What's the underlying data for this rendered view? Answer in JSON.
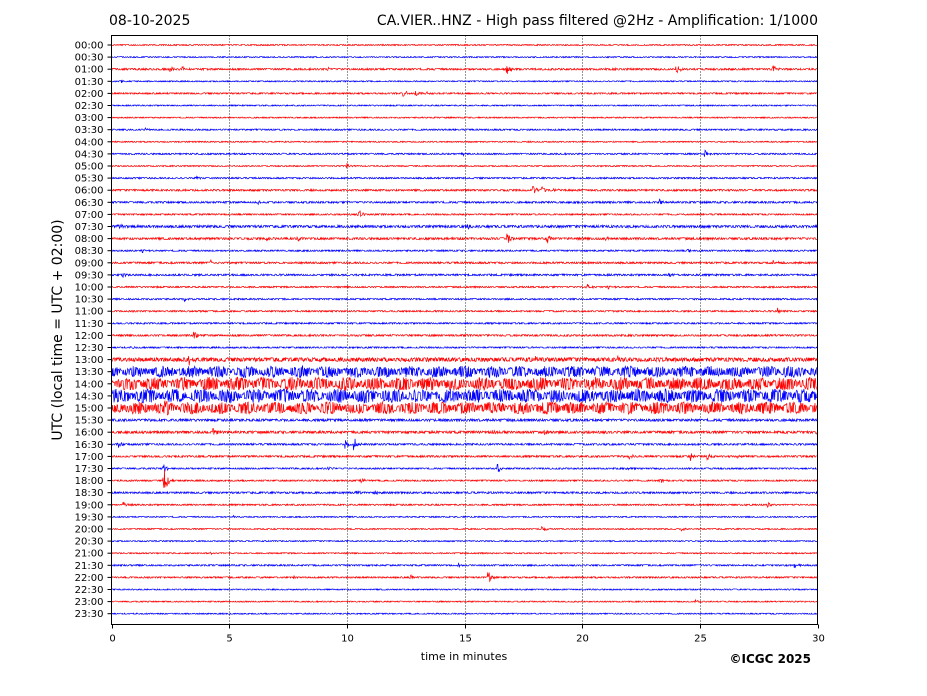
{
  "chart_data": {
    "type": "line",
    "title_left": "08-10-2025",
    "title_right": "CA.VIER..HNZ - High pass filtered @2Hz - Amplification: 1/1000",
    "xlabel": "time in minutes",
    "ylabel": "UTC (local time = UTC + 02:00)",
    "copyright": "©ICGC 2025",
    "xlim": [
      0,
      30
    ],
    "x_ticks": [
      "0",
      "5",
      "10",
      "15",
      "20",
      "25",
      "30"
    ],
    "x_tick_values": [
      0,
      5,
      10,
      15,
      20,
      25,
      30
    ],
    "grid": "vertical dotted",
    "colors": {
      "red": "#ff0000",
      "blue": "#0000ff"
    },
    "rows": [
      {
        "label": "00:00",
        "color": "red",
        "noise": 0.4,
        "events": []
      },
      {
        "label": "00:30",
        "color": "blue",
        "noise": 0.4,
        "events": []
      },
      {
        "label": "01:00",
        "color": "red",
        "noise": 0.6,
        "events": [
          [
            2.5,
            4
          ],
          [
            3,
            3
          ],
          [
            9.2,
            2
          ],
          [
            16.8,
            6
          ],
          [
            24,
            5
          ],
          [
            28.1,
            4
          ]
        ]
      },
      {
        "label": "01:30",
        "color": "blue",
        "noise": 0.4,
        "events": [
          [
            0.4,
            2
          ]
        ]
      },
      {
        "label": "02:00",
        "color": "red",
        "noise": 0.5,
        "events": [
          [
            12.4,
            5
          ],
          [
            12.9,
            4
          ],
          [
            13.4,
            3
          ]
        ]
      },
      {
        "label": "02:30",
        "color": "blue",
        "noise": 0.4,
        "events": []
      },
      {
        "label": "03:00",
        "color": "red",
        "noise": 0.4,
        "events": []
      },
      {
        "label": "03:30",
        "color": "blue",
        "noise": 0.5,
        "events": [
          [
            1.4,
            2
          ]
        ]
      },
      {
        "label": "04:00",
        "color": "red",
        "noise": 0.4,
        "events": []
      },
      {
        "label": "04:30",
        "color": "blue",
        "noise": 0.5,
        "events": [
          [
            14.9,
            2
          ],
          [
            25.2,
            4
          ]
        ]
      },
      {
        "label": "05:00",
        "color": "red",
        "noise": 0.4,
        "events": [
          [
            10,
            3
          ]
        ]
      },
      {
        "label": "05:30",
        "color": "blue",
        "noise": 0.5,
        "events": [
          [
            3.6,
            2
          ]
        ]
      },
      {
        "label": "06:00",
        "color": "red",
        "noise": 0.6,
        "events": [
          [
            17.9,
            5
          ],
          [
            18.3,
            4
          ],
          [
            18.8,
            3
          ]
        ]
      },
      {
        "label": "06:30",
        "color": "blue",
        "noise": 0.6,
        "events": [
          [
            6.2,
            2
          ],
          [
            23.3,
            4
          ]
        ]
      },
      {
        "label": "07:00",
        "color": "red",
        "noise": 0.5,
        "events": [
          [
            10.5,
            6
          ],
          [
            24.1,
            2
          ]
        ]
      },
      {
        "label": "07:30",
        "color": "blue",
        "noise": 0.8,
        "events": [
          [
            0.3,
            4
          ],
          [
            15.1,
            3
          ]
        ]
      },
      {
        "label": "08:00",
        "color": "red",
        "noise": 0.7,
        "events": [
          [
            6.6,
            3
          ],
          [
            7.9,
            3
          ],
          [
            16.8,
            9
          ],
          [
            18.5,
            5
          ],
          [
            21,
            2
          ]
        ]
      },
      {
        "label": "08:30",
        "color": "blue",
        "noise": 0.5,
        "events": [
          [
            1.3,
            2
          ],
          [
            24.5,
            2
          ]
        ]
      },
      {
        "label": "09:00",
        "color": "red",
        "noise": 0.6,
        "events": [
          [
            4.2,
            4
          ],
          [
            28.1,
            3
          ]
        ]
      },
      {
        "label": "09:30",
        "color": "blue",
        "noise": 0.6,
        "events": [
          [
            0.5,
            3
          ],
          [
            23.7,
            3
          ]
        ]
      },
      {
        "label": "10:00",
        "color": "red",
        "noise": 0.5,
        "events": [
          [
            20.2,
            3
          ],
          [
            21.1,
            2
          ]
        ]
      },
      {
        "label": "10:30",
        "color": "blue",
        "noise": 0.5,
        "events": [
          [
            3.1,
            2
          ]
        ]
      },
      {
        "label": "11:00",
        "color": "red",
        "noise": 0.5,
        "events": [
          [
            28.3,
            4
          ]
        ]
      },
      {
        "label": "11:30",
        "color": "blue",
        "noise": 0.5,
        "events": []
      },
      {
        "label": "12:00",
        "color": "red",
        "noise": 0.6,
        "events": [
          [
            3.5,
            5
          ]
        ]
      },
      {
        "label": "12:30",
        "color": "blue",
        "noise": 0.5,
        "events": [
          [
            0.8,
            2
          ]
        ]
      },
      {
        "label": "13:00",
        "color": "red",
        "noise": 1.3,
        "events": [
          [
            3.3,
            5
          ],
          [
            18,
            3
          ],
          [
            21.5,
            3
          ]
        ]
      },
      {
        "label": "13:30",
        "color": "blue",
        "noise": 2.8,
        "events": [
          [
            28.6,
            5
          ]
        ]
      },
      {
        "label": "14:00",
        "color": "red",
        "noise": 3.2,
        "events": [
          [
            20.5,
            6
          ]
        ]
      },
      {
        "label": "14:30",
        "color": "blue",
        "noise": 3.4,
        "events": []
      },
      {
        "label": "15:00",
        "color": "red",
        "noise": 3.0,
        "events": [
          [
            2.3,
            4
          ]
        ]
      },
      {
        "label": "15:30",
        "color": "blue",
        "noise": 0.8,
        "events": []
      },
      {
        "label": "16:00",
        "color": "red",
        "noise": 0.8,
        "events": [
          [
            4.3,
            5
          ],
          [
            16.2,
            3
          ],
          [
            18.4,
            3
          ],
          [
            30,
            3
          ]
        ]
      },
      {
        "label": "16:30",
        "color": "blue",
        "noise": 0.6,
        "events": [
          [
            0.3,
            3
          ],
          [
            9.9,
            5
          ],
          [
            10.3,
            8
          ]
        ]
      },
      {
        "label": "17:00",
        "color": "red",
        "noise": 0.6,
        "events": [
          [
            22,
            3
          ],
          [
            24.6,
            4
          ],
          [
            25.3,
            3
          ],
          [
            26.6,
            2
          ]
        ]
      },
      {
        "label": "17:30",
        "color": "blue",
        "noise": 0.5,
        "events": [
          [
            2.2,
            6
          ],
          [
            9.2,
            2
          ],
          [
            16.4,
            5
          ],
          [
            21.9,
            2
          ]
        ]
      },
      {
        "label": "18:00",
        "color": "red",
        "noise": 0.5,
        "events": [
          [
            2.2,
            22
          ],
          [
            10.6,
            3
          ],
          [
            23.3,
            3
          ]
        ]
      },
      {
        "label": "18:30",
        "color": "blue",
        "noise": 0.6,
        "events": [
          [
            10.4,
            3
          ],
          [
            11.2,
            3
          ]
        ]
      },
      {
        "label": "19:00",
        "color": "red",
        "noise": 0.5,
        "events": [
          [
            0.5,
            3
          ],
          [
            27.9,
            3
          ]
        ]
      },
      {
        "label": "19:30",
        "color": "blue",
        "noise": 0.4,
        "events": [
          [
            5.2,
            2
          ]
        ]
      },
      {
        "label": "20:00",
        "color": "red",
        "noise": 0.4,
        "events": [
          [
            18.3,
            5
          ],
          [
            24.2,
            2
          ]
        ]
      },
      {
        "label": "20:30",
        "color": "blue",
        "noise": 0.4,
        "events": []
      },
      {
        "label": "21:00",
        "color": "red",
        "noise": 0.4,
        "events": [
          [
            4.2,
            2
          ]
        ]
      },
      {
        "label": "21:30",
        "color": "blue",
        "noise": 0.5,
        "events": [
          [
            14.7,
            3
          ],
          [
            29,
            4
          ]
        ]
      },
      {
        "label": "22:00",
        "color": "red",
        "noise": 0.5,
        "events": [
          [
            7.7,
            2
          ],
          [
            12.7,
            3
          ],
          [
            16,
            8
          ]
        ]
      },
      {
        "label": "22:30",
        "color": "blue",
        "noise": 0.4,
        "events": []
      },
      {
        "label": "23:00",
        "color": "red",
        "noise": 0.4,
        "events": [
          [
            24.8,
            2
          ]
        ]
      },
      {
        "label": "23:30",
        "color": "blue",
        "noise": 0.4,
        "events": []
      }
    ]
  }
}
